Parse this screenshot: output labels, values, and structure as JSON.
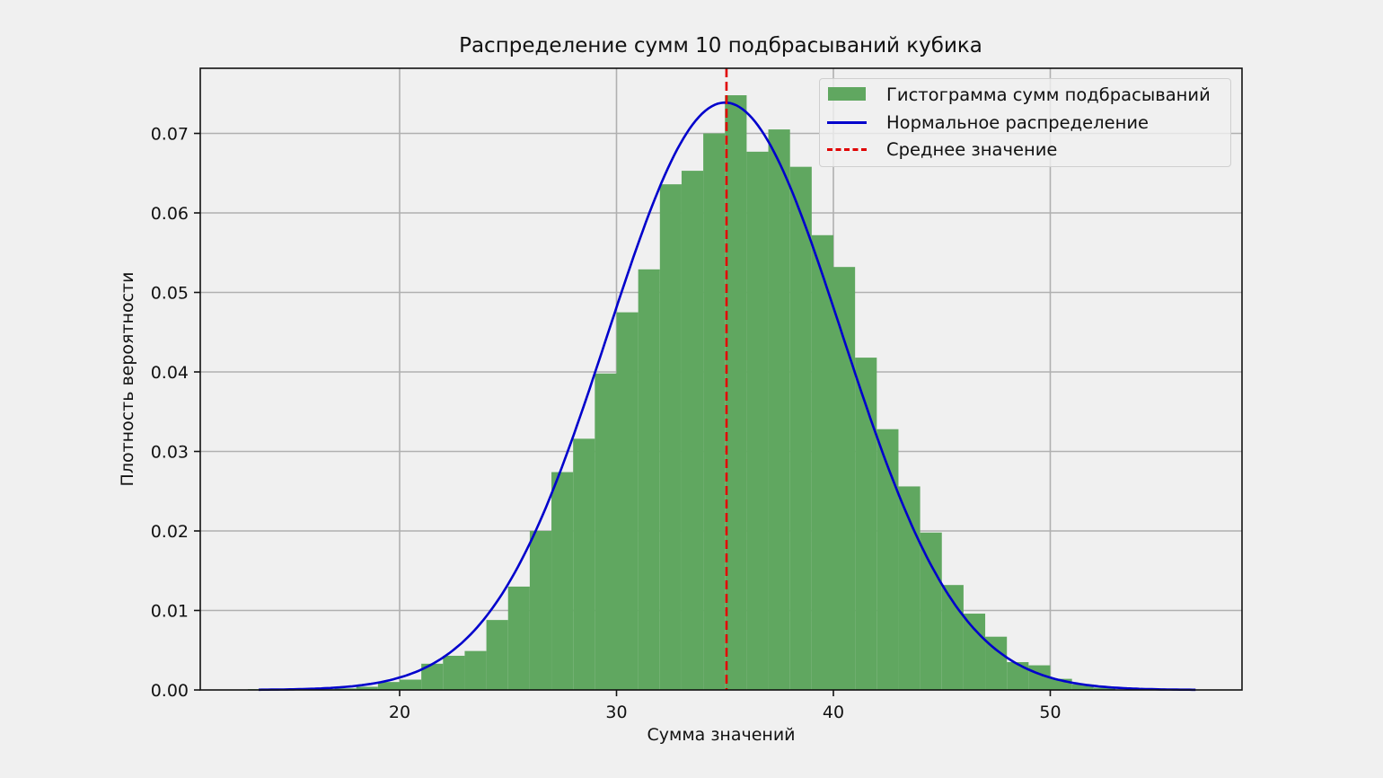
{
  "chart_data": {
    "type": "bar",
    "title": "Распределение сумм 10 подбрасываний кубика",
    "xlabel": "Сумма значений",
    "ylabel": "Плотность вероятности",
    "xlim": [
      11.0,
      59.0
    ],
    "ylim": [
      0.0,
      0.0785
    ],
    "xticks": [
      20,
      30,
      40,
      50
    ],
    "xtick_labels": [
      "20",
      "30",
      "40",
      "50"
    ],
    "yticks": [
      0.0,
      0.01,
      0.02,
      0.03,
      0.04,
      0.05,
      0.06,
      0.07
    ],
    "ytick_labels": [
      "0.00",
      "0.01",
      "0.02",
      "0.03",
      "0.04",
      "0.05",
      "0.06",
      "0.07"
    ],
    "grid": true,
    "legend_position": "upper right",
    "histogram": {
      "name": "Гистограмма сумм подбрасываний",
      "color": "#60a760",
      "bin_width": 1,
      "bin_edges_start": 13,
      "bins": [
        13,
        14,
        15,
        16,
        17,
        18,
        19,
        20,
        21,
        22,
        23,
        24,
        25,
        26,
        27,
        28,
        29,
        30,
        31,
        32,
        33,
        34,
        35,
        36,
        37,
        38,
        39,
        40,
        41,
        42,
        43,
        44,
        45,
        46,
        47,
        48,
        49,
        50,
        51,
        52
      ],
      "values": [
        0.0001,
        0.0,
        0.0001,
        0.0001,
        0.0002,
        0.0004,
        0.001,
        0.0013,
        0.0033,
        0.0043,
        0.0049,
        0.0088,
        0.013,
        0.02,
        0.0274,
        0.0316,
        0.0398,
        0.0475,
        0.0529,
        0.0636,
        0.0653,
        0.07,
        0.0748,
        0.0677,
        0.0705,
        0.0658,
        0.0572,
        0.0532,
        0.0418,
        0.0328,
        0.0256,
        0.0198,
        0.0132,
        0.0096,
        0.0067,
        0.0035,
        0.0031,
        0.0014,
        0.0007,
        0.0003
      ]
    },
    "normal_curve": {
      "name": "Нормальное распределение",
      "color": "#0000cc",
      "mean": 35.0,
      "std": 5.4,
      "x_range": [
        13.5,
        56.7
      ],
      "peak": 0.0741
    },
    "mean_line": {
      "name": "Среднее значение",
      "color": "#e00000",
      "x": 35.07,
      "style": "dashed"
    }
  },
  "legend": {
    "items": [
      {
        "label": "Гистограмма сумм подбрасываний",
        "type": "bar"
      },
      {
        "label": "Нормальное распределение",
        "type": "line"
      },
      {
        "label": "Среднее значение",
        "type": "dash"
      }
    ]
  }
}
